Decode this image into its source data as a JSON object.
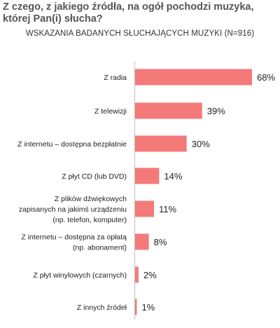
{
  "chart_data": {
    "type": "bar",
    "orientation": "horizontal",
    "title": "Z czego, z jakiego źródła, na ogół pochodzi muzyka, której Pan(i) słucha?",
    "subtitle": "WSKAZANIA BADANYCH SŁUCHAJĄCYCH MUZYKI (N=916)",
    "categories": [
      [
        "Z radia"
      ],
      [
        "Z telewizji"
      ],
      [
        "Z internetu – dostępna bezpłatnie"
      ],
      [
        "Z płyt CD (lub DVD)"
      ],
      [
        "Z plików dźwiękowych",
        "zapisanych  na jakimś urządzeniu",
        "(np. telefon, komputer)"
      ],
      [
        "Z internetu – dostępna za opłatą",
        "(np. abonament)"
      ],
      [
        "Z płyt winylowych (czarnych)"
      ],
      [
        "Z innych źródeł"
      ]
    ],
    "values": [
      68,
      39,
      30,
      14,
      11,
      8,
      2,
      1
    ],
    "value_labels": [
      "68%",
      "39%",
      "30%",
      "14%",
      "11%",
      "8%",
      "2%",
      "1%"
    ],
    "xlim": [
      0,
      68
    ],
    "bar_color": "#f47a7a",
    "grid": false
  }
}
